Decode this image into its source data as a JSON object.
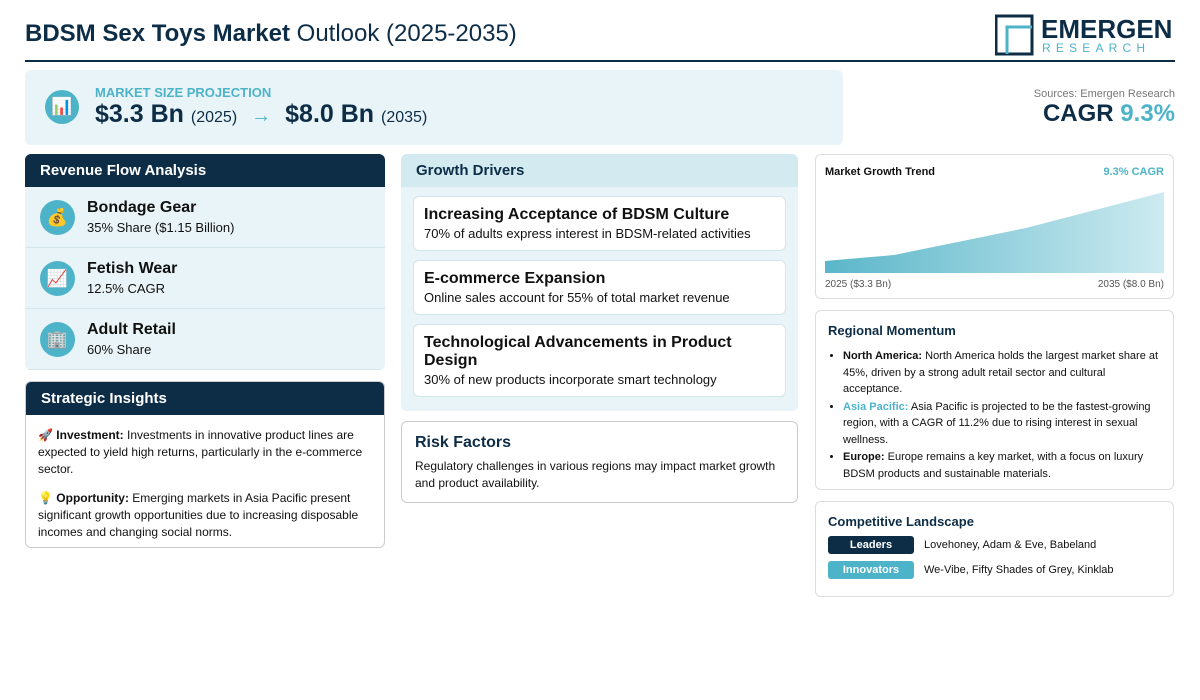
{
  "header": {
    "title_bold": "BDSM Sex Toys Market",
    "title_rest": "Outlook (2025-2035)",
    "logo_top": "EMERGEN",
    "logo_bottom": "RESEARCH"
  },
  "projection": {
    "icon": "📊",
    "label": "MARKET SIZE PROJECTION",
    "start_value": "$3.3 Bn",
    "start_year": "(2025)",
    "arrow": "→",
    "end_value": "$8.0 Bn",
    "end_year": "(2035)"
  },
  "cagr": {
    "source": "Sources: Emergen Research",
    "label": "CAGR",
    "value": "9.3%"
  },
  "revenue": {
    "title": "Revenue Flow Analysis",
    "items": [
      {
        "icon": "💰",
        "name": "Bondage Gear",
        "detail": "35% Share ($1.15 Billion)"
      },
      {
        "icon": "📈",
        "name": "Fetish Wear",
        "detail": "12.5% CAGR"
      },
      {
        "icon": "🏢",
        "name": "Adult Retail",
        "detail": "60% Share"
      }
    ]
  },
  "insights": {
    "title": "Strategic Insights",
    "items": [
      {
        "icon": "🚀",
        "label": "Investment:",
        "text": "Investments in innovative product lines are expected to yield high returns, particularly in the e-commerce sector."
      },
      {
        "icon": "💡",
        "label": "Opportunity:",
        "text": "Emerging markets in Asia Pacific present significant growth opportunities due to increasing disposable incomes and changing social norms."
      }
    ]
  },
  "drivers": {
    "title": "Growth Drivers",
    "items": [
      {
        "title": "Increasing Acceptance of BDSM Culture",
        "text": "70% of adults express interest in BDSM-related activities"
      },
      {
        "title": "E-commerce Expansion",
        "text": "Online sales account for 55% of total market revenue"
      },
      {
        "title": "Technological Advancements in Product Design",
        "text": "30% of new products incorporate smart technology"
      }
    ]
  },
  "risk": {
    "title": "Risk Factors",
    "text": "Regulatory challenges in various regions may impact market growth and product availability."
  },
  "trend": {
    "title": "Market Growth Trend",
    "badge": "9.3% CAGR",
    "start_label": "2025 ($3.3 Bn)",
    "end_label": "2035 ($8.0 Bn)"
  },
  "regional": {
    "title": "Regional Momentum",
    "items": [
      {
        "region": "North America:",
        "text": "North America holds the largest market share at 45%, driven by a strong adult retail sector and cultural acceptance."
      },
      {
        "region": "Asia Pacific:",
        "text": "Asia Pacific is projected to be the fastest-growing region, with a CAGR of 11.2% due to rising interest in sexual wellness."
      },
      {
        "region": "Europe:",
        "text": "Europe remains a key market, with a focus on luxury BDSM products and sustainable materials."
      }
    ]
  },
  "competitive": {
    "title": "Competitive Landscape",
    "rows": [
      {
        "tag": "Leaders",
        "companies": "Lovehoney, Adam & Eve, Babeland"
      },
      {
        "tag": "Innovators",
        "companies": "We-Vibe, Fifty Shades of Grey, Kinklab"
      }
    ]
  }
}
